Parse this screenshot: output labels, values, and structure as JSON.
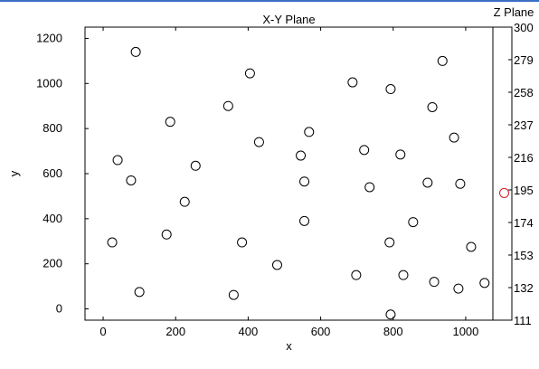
{
  "chart_data": [
    {
      "type": "scatter",
      "title": "X-Y Plane",
      "xlabel": "x",
      "ylabel": "y",
      "xlim": [
        -50,
        1075
      ],
      "ylim": [
        -50,
        1250
      ],
      "xticks": [
        0,
        200,
        400,
        600,
        800,
        1000
      ],
      "yticks": [
        0,
        200,
        400,
        600,
        800,
        1000,
        1200
      ],
      "marker": "circle-open",
      "marker_color": "#000000",
      "grid": false,
      "points": [
        {
          "x": 90,
          "y": 1140
        },
        {
          "x": 405,
          "y": 1045
        },
        {
          "x": 688,
          "y": 1005
        },
        {
          "x": 793,
          "y": 975
        },
        {
          "x": 936,
          "y": 1100
        },
        {
          "x": 345,
          "y": 900
        },
        {
          "x": 908,
          "y": 895
        },
        {
          "x": 185,
          "y": 830
        },
        {
          "x": 568,
          "y": 785
        },
        {
          "x": 968,
          "y": 760
        },
        {
          "x": 430,
          "y": 740
        },
        {
          "x": 720,
          "y": 705
        },
        {
          "x": 820,
          "y": 685
        },
        {
          "x": 545,
          "y": 680
        },
        {
          "x": 40,
          "y": 660
        },
        {
          "x": 255,
          "y": 635
        },
        {
          "x": 77,
          "y": 570
        },
        {
          "x": 555,
          "y": 565
        },
        {
          "x": 895,
          "y": 560
        },
        {
          "x": 985,
          "y": 555
        },
        {
          "x": 735,
          "y": 540
        },
        {
          "x": 225,
          "y": 475
        },
        {
          "x": 555,
          "y": 390
        },
        {
          "x": 855,
          "y": 385
        },
        {
          "x": 175,
          "y": 330
        },
        {
          "x": 25,
          "y": 295
        },
        {
          "x": 383,
          "y": 295
        },
        {
          "x": 790,
          "y": 295
        },
        {
          "x": 1015,
          "y": 275
        },
        {
          "x": 480,
          "y": 195
        },
        {
          "x": 698,
          "y": 150
        },
        {
          "x": 828,
          "y": 150
        },
        {
          "x": 913,
          "y": 120
        },
        {
          "x": 1052,
          "y": 115
        },
        {
          "x": 980,
          "y": 90
        },
        {
          "x": 100,
          "y": 75
        },
        {
          "x": 360,
          "y": 62
        },
        {
          "x": 793,
          "y": -25
        }
      ]
    },
    {
      "type": "scatter",
      "title": "Z Plane",
      "ylim": [
        111,
        300
      ],
      "yticks": [
        111,
        132,
        153,
        174,
        195,
        216,
        237,
        258,
        279,
        300
      ],
      "marker": "circle-open",
      "marker_color": "#d42020",
      "grid": false,
      "points": [
        {
          "y": 193
        }
      ]
    }
  ]
}
